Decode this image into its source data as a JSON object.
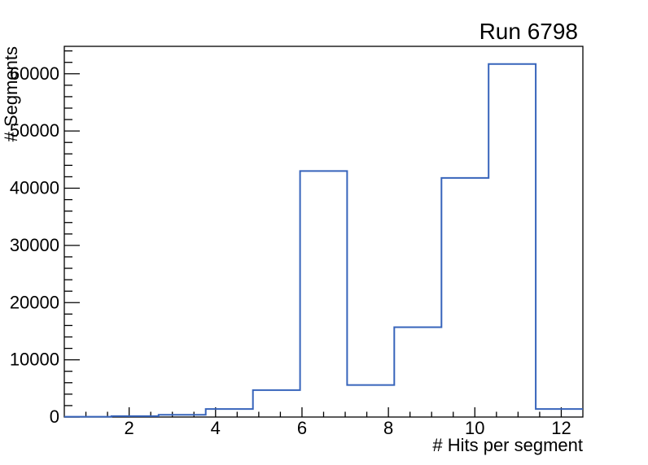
{
  "chart_data": {
    "type": "histogram-step",
    "title": "Run 6798",
    "xlabel": "# Hits per segment",
    "ylabel": "# Segments",
    "xlim": [
      0.5,
      12.5
    ],
    "ylim": [
      0,
      64800
    ],
    "n_bins": 11,
    "bin_edges": [
      0.5,
      1.591,
      2.682,
      3.773,
      4.864,
      5.955,
      7.045,
      8.136,
      9.227,
      10.318,
      11.409,
      12.5
    ],
    "counts": [
      60,
      150,
      400,
      1400,
      4700,
      43000,
      5600,
      15700,
      41800,
      61700,
      1400
    ],
    "x_major_ticks": [
      2,
      4,
      6,
      8,
      10,
      12
    ],
    "x_minor_step": 0.5,
    "y_major_ticks": [
      0,
      10000,
      20000,
      30000,
      40000,
      50000,
      60000
    ],
    "y_minor_step": 2000,
    "grid": false,
    "legend_position": "none",
    "line_color": "#3764bb",
    "frame_color": "#000000",
    "background_color": "#ffffff"
  }
}
